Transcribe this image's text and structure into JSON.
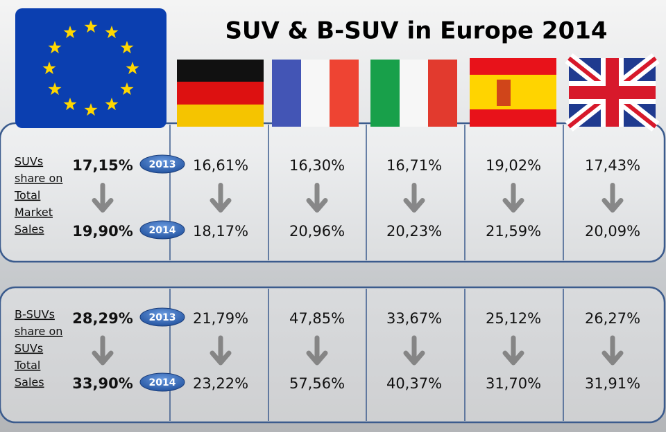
{
  "title": "SUV & B-SUV in Europe 2014",
  "sections": [
    {
      "label": [
        "SUVs",
        "share on",
        "Total",
        "Market",
        "Sales"
      ],
      "rows": [
        {
          "year": "2013",
          "values": [
            "17,15%",
            "16,61%",
            "16,30%",
            "16,71%",
            "19,02%",
            "17,43%"
          ]
        },
        {
          "year": "2014",
          "values": [
            "19,90%",
            "18,17%",
            "20,96%",
            "20,23%",
            "21,59%",
            "20,09%"
          ]
        }
      ]
    },
    {
      "label": [
        "B-SUVs",
        "share on",
        "SUVs",
        "Total",
        "Sales"
      ],
      "rows": [
        {
          "year": "2013",
          "values": [
            "28,29%",
            "21,79%",
            "47,85%",
            "33,67%",
            "25,12%",
            "26,27%"
          ]
        },
        {
          "year": "2014",
          "values": [
            "33,90%",
            "23,22%",
            "57,56%",
            "40,37%",
            "31,70%",
            "31,91%"
          ]
        }
      ]
    }
  ]
}
